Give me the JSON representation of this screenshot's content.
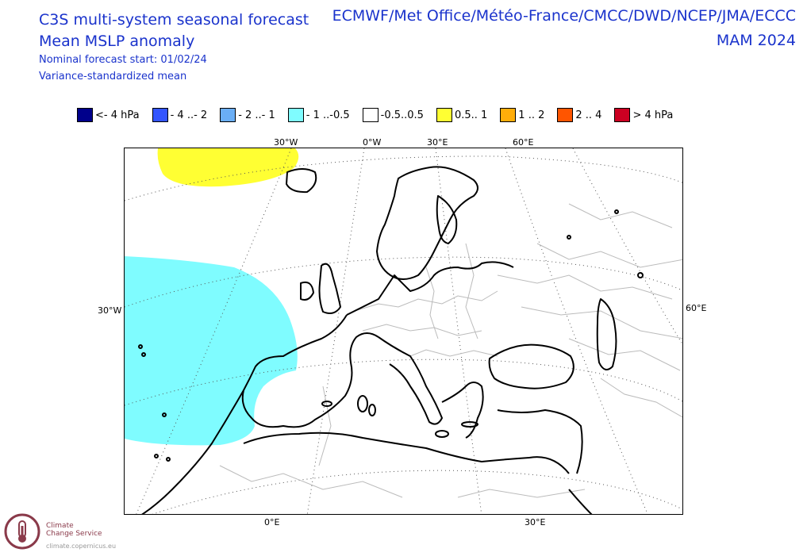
{
  "header": {
    "title_line1": "C3S multi-system seasonal forecast",
    "title_line2": "Mean MSLP anomaly",
    "forecast_start": "Nominal forecast start: 01/02/24",
    "note": "Variance-standardized mean",
    "systems": "ECMWF/Met Office/Météo-France/CMCC/DWD/NCEP/JMA/ECCC",
    "season": "MAM 2024"
  },
  "legend": [
    {
      "label": "<- 4 hPa",
      "color": "#00008b"
    },
    {
      "label": "- 4 ..- 2",
      "color": "#3355ff"
    },
    {
      "label": "- 2 ..- 1",
      "color": "#6aaef5"
    },
    {
      "label": "- 1 ..-0.5",
      "color": "#7ffcff"
    },
    {
      "label": "-0.5..0.5",
      "color": "#ffffff"
    },
    {
      "label": "0.5.. 1",
      "color": "#ffff33"
    },
    {
      "label": "1 .. 2",
      "color": "#ffad0a"
    },
    {
      "label": "2 .. 4",
      "color": "#ff5500"
    },
    {
      "label": ">  4 hPa",
      "color": "#cc0022"
    }
  ],
  "map": {
    "top_labels": [
      "30°W",
      "0°W",
      "30°E",
      "60°E"
    ],
    "left_label": "30°W",
    "right_label": "60°E",
    "bottom_labels": [
      "0°E",
      "30°E"
    ],
    "anomaly_regions": [
      {
        "name": "north-atlantic-positive",
        "category": "0.5.. 1",
        "color": "#ffff33"
      },
      {
        "name": "atlantic-iberia-negative",
        "category": "- 1 ..-0.5",
        "color": "#7ffcff"
      }
    ]
  },
  "logo": {
    "line1": "Climate",
    "line2": "Change Service",
    "url": "climate.copernicus.eu",
    "color": "#8a3a4a"
  }
}
